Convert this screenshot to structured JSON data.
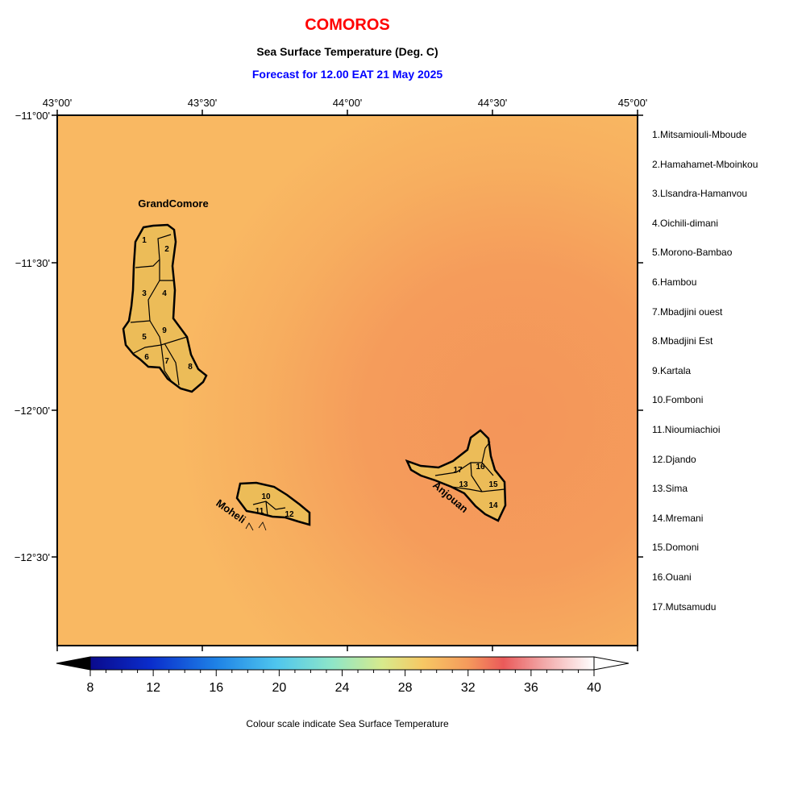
{
  "header": {
    "country": "COMOROS",
    "subtitle": "Sea Surface Temperature (Deg. C)",
    "forecast": "Forecast for  12.00 EAT 21 May 2025"
  },
  "axes": {
    "top_labels": [
      "43°00'",
      "43°30'",
      "44°00'",
      "44°30'",
      "45°00'"
    ],
    "left_labels": [
      "−11°00'",
      "−11°30'",
      "−12°00'",
      "−12°30'"
    ]
  },
  "map": {
    "extent": {
      "lon": [
        43.0,
        45.0
      ],
      "lat": [
        -12.8,
        -11.0
      ]
    },
    "ocean_colors": {
      "cool": "#f9b862",
      "warm": "#f4975a"
    },
    "land_color": "#ecbc58",
    "island_labels": {
      "grand_comore": "GrandComore",
      "moheli": "Moheli",
      "anjouan": "Anjouan"
    },
    "region_numbers": [
      "1",
      "2",
      "3",
      "4",
      "5",
      "6",
      "7",
      "8",
      "9",
      "10",
      "11",
      "12",
      "13",
      "14",
      "15",
      "16",
      "17"
    ]
  },
  "regions": [
    "1.Mitsamiouli-Mboude",
    "2.Hamahamet-Mboinkou",
    "3.Llsandra-Hamanvou",
    "4.Oichili-dimani",
    "5.Morono-Bambao",
    "6.Hambou",
    "7.Mbadjini ouest",
    "8.Mbadjini Est",
    "9.Kartala",
    "10.Fomboni",
    "11.Nioumiachioi",
    "12.Djando",
    "13.Sima",
    "14.Mremani",
    "15.Domoni",
    "16.Ouani",
    "17.Mutsamudu"
  ],
  "colorbar": {
    "ticks": [
      "8",
      "12",
      "16",
      "20",
      "24",
      "28",
      "32",
      "36",
      "40"
    ],
    "range": [
      8,
      40
    ],
    "caption": "Colour scale indicate Sea Surface Temperature"
  }
}
